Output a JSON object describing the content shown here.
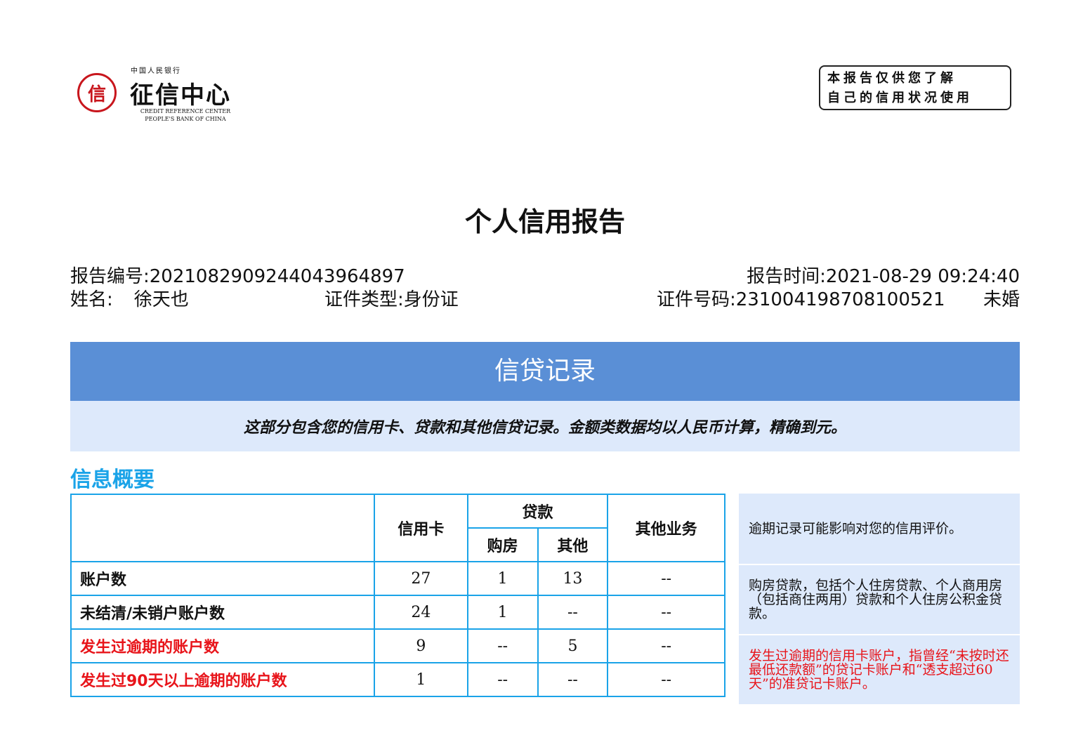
{
  "logo": {
    "top_text": "中国人民银行",
    "name": "征信中心",
    "en_line1": "CREDIT REFERENCE CENTER",
    "en_line2": "PEOPLE'S BANK OF CHINA",
    "seal_glyph": "信"
  },
  "stamp": {
    "line1": "本报告仅供您了解",
    "line2": "自己的信用状况使用"
  },
  "title": "个人信用报告",
  "meta": {
    "report_no_label": "报告编号:",
    "report_no": "2021082909244043964897",
    "report_time_label": "报告时间:",
    "report_time": "2021-08-29 09:24:40",
    "name_label": "姓名:",
    "name": "徐天也",
    "id_type_label": "证件类型:",
    "id_type": "身份证",
    "id_no_label": "证件号码:",
    "id_no": "231004198708100521",
    "marital": "未婚"
  },
  "section": {
    "band_title": "信贷记录",
    "description": "这部分包含您的信用卡、贷款和其他信贷记录。金额类数据均以人民币计算，精确到元。",
    "subtitle": "信息概要"
  },
  "table": {
    "headers": {
      "credit_card": "信用卡",
      "loan": "贷款",
      "housing": "购房",
      "other": "其他",
      "other_business": "其他业务"
    },
    "rows": [
      {
        "label": "账户数",
        "values": [
          "27",
          "1",
          "13",
          "--"
        ],
        "highlight": false
      },
      {
        "label": "未结清/未销户账户数",
        "values": [
          "24",
          "1",
          "--",
          "--"
        ],
        "highlight": false
      },
      {
        "label": "发生过逾期的账户数",
        "values": [
          "9",
          "--",
          "5",
          "--"
        ],
        "highlight": true
      },
      {
        "label": "发生过90天以上逾期的账户数",
        "values": [
          "1",
          "--",
          "--",
          "--"
        ],
        "highlight": true
      }
    ]
  },
  "notes": [
    "逾期记录可能影响对您的信用评价。",
    "购房贷款，包括个人住房贷款、个人商用房（包括商住两用）贷款和个人住房公积金贷款。",
    "发生过逾期的信用卡账户，指曾经“未按时还最低还款额”的贷记卡账户和“透支超过60天”的准贷记卡账户。"
  ],
  "colors": {
    "band": "#5a8fd6",
    "light": "#dde9fb",
    "accent": "#1aa3e8",
    "warning": "#e8141a"
  }
}
